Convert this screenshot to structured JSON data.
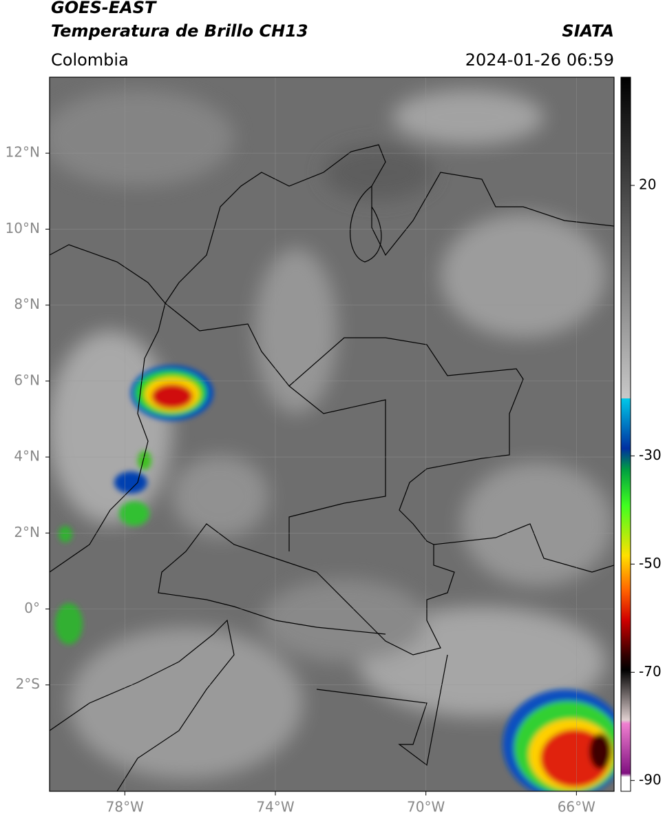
{
  "header": {
    "title": "GOES-EAST",
    "subtitle": "Temperatura de Brillo CH13",
    "region": "Colombia",
    "source": "SIATA",
    "timestamp": "2024-01-26 06:59"
  },
  "map": {
    "xlim": [
      -80,
      -65
    ],
    "ylim": [
      -4.8,
      14
    ],
    "xticks": [
      {
        "value": -78,
        "label": "78°W"
      },
      {
        "value": -74,
        "label": "74°W"
      },
      {
        "value": -70,
        "label": "70°W"
      },
      {
        "value": -66,
        "label": "66°W"
      }
    ],
    "yticks": [
      {
        "value": 12,
        "label": "12°N"
      },
      {
        "value": 10,
        "label": "10°N"
      },
      {
        "value": 8,
        "label": "8°N"
      },
      {
        "value": 6,
        "label": "6°N"
      },
      {
        "value": 4,
        "label": "4°N"
      },
      {
        "value": 2,
        "label": "2°N"
      },
      {
        "value": 0,
        "label": "0°"
      },
      {
        "value": -2,
        "label": "2°S"
      }
    ],
    "grid": true
  },
  "colorbar": {
    "lim": [
      -92,
      40
    ],
    "ticks": [
      20,
      -30,
      -50,
      -70,
      -90
    ]
  }
}
